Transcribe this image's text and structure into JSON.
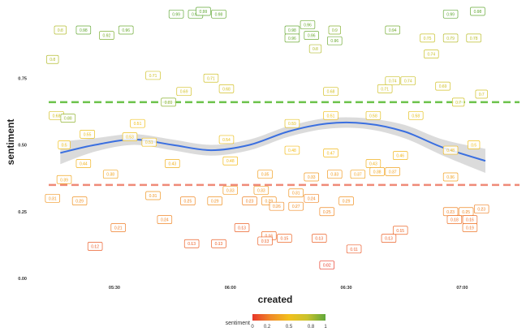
{
  "chart_data": {
    "type": "scatter",
    "title": "",
    "xlabel": "created",
    "ylabel": "sentiment",
    "x_domain": [
      "05:13",
      "07:10"
    ],
    "ylim": [
      0,
      1
    ],
    "x_ticks": [
      {
        "label": "05:30",
        "at": "05:30"
      },
      {
        "label": "06:00",
        "at": "06:00"
      },
      {
        "label": "06:30",
        "at": "06:30"
      },
      {
        "label": "07:00",
        "at": "07:00"
      }
    ],
    "y_ticks": [
      {
        "label": "0.00",
        "value": 0.0
      },
      {
        "label": "0.25",
        "value": 0.25
      },
      {
        "label": "0.50",
        "value": 0.5
      },
      {
        "label": "0.75",
        "value": 0.75
      }
    ],
    "reference_lines": [
      {
        "value": 0.66,
        "color": "#6cc24a"
      },
      {
        "value": 0.35,
        "color": "#ef8a78"
      }
    ],
    "grid": false,
    "legend": {
      "position": "bottom",
      "title": "sentiment",
      "tick_labels": [
        "0",
        "0.2",
        "0.5",
        "0.8",
        "1"
      ],
      "colors": [
        "#e8362b",
        "#f08a28",
        "#f2c01c",
        "#c9c22e",
        "#5fa83a"
      ]
    },
    "smooth": {
      "color": "#3a6fe0",
      "band_color": "#cfcfcf",
      "points": [
        {
          "t": "05:16",
          "y": 0.47,
          "band": 0.042
        },
        {
          "t": "05:25",
          "y": 0.5,
          "band": 0.025
        },
        {
          "t": "05:35",
          "y": 0.52,
          "band": 0.02
        },
        {
          "t": "05:45",
          "y": 0.5,
          "band": 0.02
        },
        {
          "t": "05:55",
          "y": 0.48,
          "band": 0.02
        },
        {
          "t": "06:05",
          "y": 0.5,
          "band": 0.02
        },
        {
          "t": "06:15",
          "y": 0.55,
          "band": 0.02
        },
        {
          "t": "06:25",
          "y": 0.58,
          "band": 0.02
        },
        {
          "t": "06:35",
          "y": 0.58,
          "band": 0.02
        },
        {
          "t": "06:45",
          "y": 0.55,
          "band": 0.025
        },
        {
          "t": "06:55",
          "y": 0.49,
          "band": 0.03
        },
        {
          "t": "07:06",
          "y": 0.44,
          "band": 0.045
        }
      ]
    },
    "labeled_points": [
      {
        "t": "05:16",
        "y": 0.93,
        "label": "0.8"
      },
      {
        "t": "05:14",
        "y": 0.82,
        "label": "0.8"
      },
      {
        "t": "05:22",
        "y": 0.93,
        "label": "0.98"
      },
      {
        "t": "05:28",
        "y": 0.91,
        "label": "0.92"
      },
      {
        "t": "05:33",
        "y": 0.93,
        "label": "0.96"
      },
      {
        "t": "05:46",
        "y": 0.99,
        "label": "0.99"
      },
      {
        "t": "05:51",
        "y": 0.99,
        "label": "0.99"
      },
      {
        "t": "05:53",
        "y": 1.0,
        "label": "0.99"
      },
      {
        "t": "05:57",
        "y": 0.99,
        "label": "0.98"
      },
      {
        "t": "06:16",
        "y": 0.93,
        "label": "0.98"
      },
      {
        "t": "06:16",
        "y": 0.9,
        "label": "0.96"
      },
      {
        "t": "06:20",
        "y": 0.95,
        "label": "0.96"
      },
      {
        "t": "06:21",
        "y": 0.91,
        "label": "0.96"
      },
      {
        "t": "06:22",
        "y": 0.86,
        "label": "0.8"
      },
      {
        "t": "06:27",
        "y": 0.93,
        "label": "0.9"
      },
      {
        "t": "06:27",
        "y": 0.89,
        "label": "0.96"
      },
      {
        "t": "06:42",
        "y": 0.93,
        "label": "0.94"
      },
      {
        "t": "06:51",
        "y": 0.9,
        "label": "0.75"
      },
      {
        "t": "06:52",
        "y": 0.84,
        "label": "0.74"
      },
      {
        "t": "06:57",
        "y": 0.99,
        "label": "0.99"
      },
      {
        "t": "06:57",
        "y": 0.9,
        "label": "0.79"
      },
      {
        "t": "07:04",
        "y": 1.0,
        "label": "0.98"
      },
      {
        "t": "07:03",
        "y": 0.9,
        "label": "0.78"
      },
      {
        "t": "05:40",
        "y": 0.76,
        "label": "0.71"
      },
      {
        "t": "05:55",
        "y": 0.75,
        "label": "0.71"
      },
      {
        "t": "05:48",
        "y": 0.7,
        "label": "0.69"
      },
      {
        "t": "05:59",
        "y": 0.71,
        "label": "0.68"
      },
      {
        "t": "05:15",
        "y": 0.61,
        "label": "0.68"
      },
      {
        "t": "05:18",
        "y": 0.6,
        "label": "0.88"
      },
      {
        "t": "05:36",
        "y": 0.58,
        "label": "0.51"
      },
      {
        "t": "05:44",
        "y": 0.66,
        "label": "0.89"
      },
      {
        "t": "06:16",
        "y": 0.58,
        "label": "0.59"
      },
      {
        "t": "06:26",
        "y": 0.61,
        "label": "0.51"
      },
      {
        "t": "06:26",
        "y": 0.7,
        "label": "0.68"
      },
      {
        "t": "06:40",
        "y": 0.71,
        "label": "0.71"
      },
      {
        "t": "06:42",
        "y": 0.74,
        "label": "0.74"
      },
      {
        "t": "06:46",
        "y": 0.74,
        "label": "0.74"
      },
      {
        "t": "06:55",
        "y": 0.72,
        "label": "0.69"
      },
      {
        "t": "06:59",
        "y": 0.66,
        "label": "0.7"
      },
      {
        "t": "07:05",
        "y": 0.69,
        "label": "0.7"
      },
      {
        "t": "06:37",
        "y": 0.61,
        "label": "0.58"
      },
      {
        "t": "06:48",
        "y": 0.61,
        "label": "0.58"
      },
      {
        "t": "05:23",
        "y": 0.54,
        "label": "0.55"
      },
      {
        "t": "05:39",
        "y": 0.51,
        "label": "0.51"
      },
      {
        "t": "05:34",
        "y": 0.53,
        "label": "0.53"
      },
      {
        "t": "05:17",
        "y": 0.5,
        "label": "0.5"
      },
      {
        "t": "05:59",
        "y": 0.52,
        "label": "0.54"
      },
      {
        "t": "06:16",
        "y": 0.48,
        "label": "0.48"
      },
      {
        "t": "06:26",
        "y": 0.47,
        "label": "0.47"
      },
      {
        "t": "06:37",
        "y": 0.43,
        "label": "0.43"
      },
      {
        "t": "06:44",
        "y": 0.46,
        "label": "0.46"
      },
      {
        "t": "06:57",
        "y": 0.48,
        "label": "0.48"
      },
      {
        "t": "07:03",
        "y": 0.5,
        "label": "0.5"
      },
      {
        "t": "05:22",
        "y": 0.43,
        "label": "0.44"
      },
      {
        "t": "05:29",
        "y": 0.39,
        "label": "0.38"
      },
      {
        "t": "05:45",
        "y": 0.43,
        "label": "0.43"
      },
      {
        "t": "06:00",
        "y": 0.44,
        "label": "0.48"
      },
      {
        "t": "06:09",
        "y": 0.39,
        "label": "0.35"
      },
      {
        "t": "06:21",
        "y": 0.38,
        "label": "0.33"
      },
      {
        "t": "06:27",
        "y": 0.39,
        "label": "0.33"
      },
      {
        "t": "06:33",
        "y": 0.39,
        "label": "0.37"
      },
      {
        "t": "06:38",
        "y": 0.4,
        "label": "0.38"
      },
      {
        "t": "06:42",
        "y": 0.4,
        "label": "0.37"
      },
      {
        "t": "06:57",
        "y": 0.38,
        "label": "0.36"
      },
      {
        "t": "05:17",
        "y": 0.37,
        "label": "0.39"
      },
      {
        "t": "05:14",
        "y": 0.3,
        "label": "0.31"
      },
      {
        "t": "05:21",
        "y": 0.29,
        "label": "0.29"
      },
      {
        "t": "05:40",
        "y": 0.31,
        "label": "0.31"
      },
      {
        "t": "05:49",
        "y": 0.29,
        "label": "0.25"
      },
      {
        "t": "05:56",
        "y": 0.29,
        "label": "0.29"
      },
      {
        "t": "06:00",
        "y": 0.33,
        "label": "0.33"
      },
      {
        "t": "06:05",
        "y": 0.29,
        "label": "0.23"
      },
      {
        "t": "06:08",
        "y": 0.33,
        "label": "0.33"
      },
      {
        "t": "06:10",
        "y": 0.29,
        "label": "0.29"
      },
      {
        "t": "06:12",
        "y": 0.27,
        "label": "0.26"
      },
      {
        "t": "06:17",
        "y": 0.32,
        "label": "0.31"
      },
      {
        "t": "06:17",
        "y": 0.27,
        "label": "0.27"
      },
      {
        "t": "06:21",
        "y": 0.3,
        "label": "0.24"
      },
      {
        "t": "06:30",
        "y": 0.29,
        "label": "0.29"
      },
      {
        "t": "06:25",
        "y": 0.25,
        "label": "0.25"
      },
      {
        "t": "05:43",
        "y": 0.22,
        "label": "0.24"
      },
      {
        "t": "05:31",
        "y": 0.19,
        "label": "0.21"
      },
      {
        "t": "06:03",
        "y": 0.19,
        "label": "0.13"
      },
      {
        "t": "06:10",
        "y": 0.16,
        "label": "0.16"
      },
      {
        "t": "06:09",
        "y": 0.14,
        "label": "0.13"
      },
      {
        "t": "06:14",
        "y": 0.15,
        "label": "0.15"
      },
      {
        "t": "06:23",
        "y": 0.15,
        "label": "0.13"
      },
      {
        "t": "06:41",
        "y": 0.15,
        "label": "0.13"
      },
      {
        "t": "06:44",
        "y": 0.18,
        "label": "0.15"
      },
      {
        "t": "05:25",
        "y": 0.12,
        "label": "0.12"
      },
      {
        "t": "05:50",
        "y": 0.13,
        "label": "0.13"
      },
      {
        "t": "05:57",
        "y": 0.13,
        "label": "0.13"
      },
      {
        "t": "06:32",
        "y": 0.11,
        "label": "0.11"
      },
      {
        "t": "06:25",
        "y": 0.05,
        "label": "0.02"
      },
      {
        "t": "06:57",
        "y": 0.25,
        "label": "0.23"
      },
      {
        "t": "07:01",
        "y": 0.25,
        "label": "0.25"
      },
      {
        "t": "06:58",
        "y": 0.22,
        "label": "0.18"
      },
      {
        "t": "07:02",
        "y": 0.22,
        "label": "0.16"
      },
      {
        "t": "07:05",
        "y": 0.26,
        "label": "0.23"
      },
      {
        "t": "07:02",
        "y": 0.19,
        "label": "0.19"
      }
    ]
  }
}
